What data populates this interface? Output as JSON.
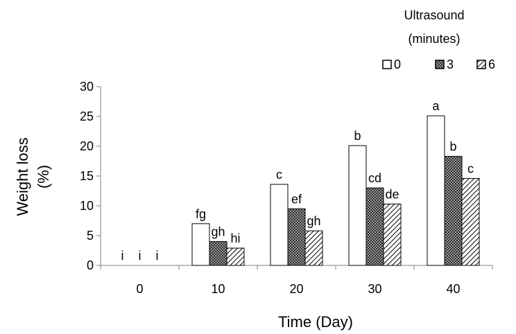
{
  "chart_data": {
    "type": "bar",
    "title": "",
    "xlabel": "Time (Day)",
    "ylabel_line1": "Weight loss",
    "ylabel_line2": "(%)",
    "ylim": [
      0,
      30
    ],
    "yticks": [
      0,
      5,
      10,
      15,
      20,
      25,
      30
    ],
    "categories": [
      "0",
      "10",
      "20",
      "30",
      "40"
    ],
    "legend": {
      "title_line1": "Ultrasound",
      "title_line2": "(minutes)",
      "placement": "top-right"
    },
    "series": [
      {
        "name": "0",
        "pattern": "white",
        "values": [
          0,
          7.0,
          13.6,
          20.1,
          25.1
        ],
        "letters": [
          "i",
          "fg",
          "c",
          "b",
          "a"
        ]
      },
      {
        "name": "3",
        "pattern": "dark-crosshatch",
        "values": [
          0,
          4.0,
          9.5,
          13.0,
          18.3
        ],
        "letters": [
          "i",
          "gh",
          "ef",
          "cd",
          "b"
        ]
      },
      {
        "name": "6",
        "pattern": "diagonal-hatch",
        "values": [
          0,
          2.9,
          5.8,
          10.3,
          14.6
        ],
        "letters": [
          "i",
          "hi",
          "gh",
          "de",
          "c"
        ]
      }
    ]
  }
}
